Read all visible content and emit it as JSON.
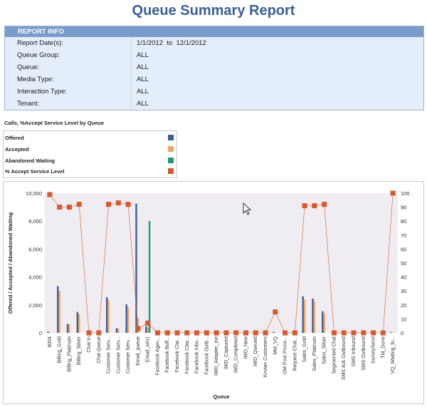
{
  "report": {
    "title": "Queue Summary Report",
    "info_header": "REPORT INFO",
    "rows": [
      {
        "label": "Report Date(s):",
        "value": "1/1/2012  to  12/1/2012"
      },
      {
        "label": "Queue Group:",
        "value": "ALL"
      },
      {
        "label": "Queue:",
        "value": "ALL"
      },
      {
        "label": "Media Type:",
        "value": "ALL"
      },
      {
        "label": "Interaction Type:",
        "value": "ALL"
      },
      {
        "label": "Tenant:",
        "value": "ALL"
      }
    ],
    "chart_title": "Calls, %Accept Service Level by Queue"
  },
  "colors": {
    "offered": "#3b5f98",
    "accepted": "#f0a860",
    "abandoned": "#1e9a78",
    "service": "#d8582a",
    "plot_bg": "#efedf1"
  },
  "legend": [
    {
      "label": "Offered",
      "color": "#3b5f98"
    },
    {
      "label": "Accepted",
      "color": "#f0a860"
    },
    {
      "label": "Abandoned Waiting",
      "color": "#1e9a78"
    },
    {
      "label": "% Accept Service Level",
      "color": "#d8582a"
    }
  ],
  "chart_data": {
    "type": "bar",
    "xlabel": "Queue",
    "ylabel": "Offered / Accepted / Abandoned Waiting",
    "ylim": [
      0,
      10000
    ],
    "y2lim": [
      0,
      100
    ],
    "yticks": [
      "0",
      "2,000",
      "4,000",
      "6,000",
      "8,000",
      "10,000"
    ],
    "y2ticks": [
      "0",
      "10",
      "20",
      "30",
      "40",
      "50",
      "60",
      "70",
      "80",
      "90",
      "100"
    ],
    "categories": [
      "9004",
      "Billing_Gold",
      "Billing_Platinum",
      "Billing_Silver",
      "Chat In",
      "Chat Queue",
      "Customer Serv...",
      "Customer Serv...",
      "Customer Serv...",
      "Email_queue",
      "Email_sim1",
      "Facebook Agen...",
      "Facebook Buff...",
      "Facebook Clai...",
      "Facebook Clas...",
      "Facebook Inbo...",
      "Facebook Outb...",
      "iWD_Adapter_ext",
      "iWD_Captured",
      "iWD_Completed",
      "iWD_New",
      "iWD_Queued",
      "Known Customers",
      "MM_VQ",
      "OM Post Proce...",
      "Request Chat...",
      "Sales_Gold",
      "Sales_Platinum",
      "Sales_Silver",
      "Segmented Chat",
      "SMS Ack Outbound",
      "SMS Inbound",
      "SMS Outbound",
      "SurveySend",
      "TM_Done",
      "VQ_Waiting_fo..."
    ],
    "series": [
      {
        "name": "Offered",
        "axis": "left",
        "type": "bar",
        "values": [
          90,
          3350,
          650,
          1500,
          0,
          0,
          2550,
          330,
          2050,
          9250,
          480,
          0,
          0,
          0,
          0,
          0,
          0,
          0,
          0,
          0,
          0,
          0,
          0,
          70,
          0,
          0,
          2620,
          2450,
          1550,
          0,
          0,
          0,
          0,
          0,
          0,
          60
        ]
      },
      {
        "name": "Accepted",
        "axis": "left",
        "type": "bar",
        "values": [
          70,
          3000,
          600,
          1350,
          0,
          0,
          2350,
          310,
          1850,
          1050,
          380,
          0,
          0,
          0,
          0,
          0,
          0,
          0,
          0,
          0,
          0,
          0,
          0,
          40,
          0,
          0,
          2400,
          2250,
          1400,
          0,
          0,
          0,
          0,
          0,
          0,
          40
        ]
      },
      {
        "name": "Abandoned Waiting",
        "axis": "left",
        "type": "bar",
        "values": [
          0,
          0,
          0,
          0,
          0,
          0,
          0,
          0,
          0,
          0,
          8000,
          0,
          0,
          0,
          0,
          0,
          0,
          0,
          0,
          0,
          0,
          0,
          0,
          0,
          0,
          0,
          0,
          0,
          0,
          0,
          0,
          0,
          0,
          0,
          0,
          0
        ]
      },
      {
        "name": "% Accept Service Level",
        "axis": "right",
        "type": "line",
        "values": [
          99,
          90,
          90,
          92,
          0,
          0,
          92,
          93,
          92,
          3,
          7,
          0,
          0,
          0,
          0,
          0,
          0,
          0,
          0,
          0,
          0,
          0,
          0,
          15,
          0,
          0,
          91,
          91,
          92,
          0,
          0,
          0,
          0,
          0,
          0,
          100
        ]
      }
    ]
  }
}
